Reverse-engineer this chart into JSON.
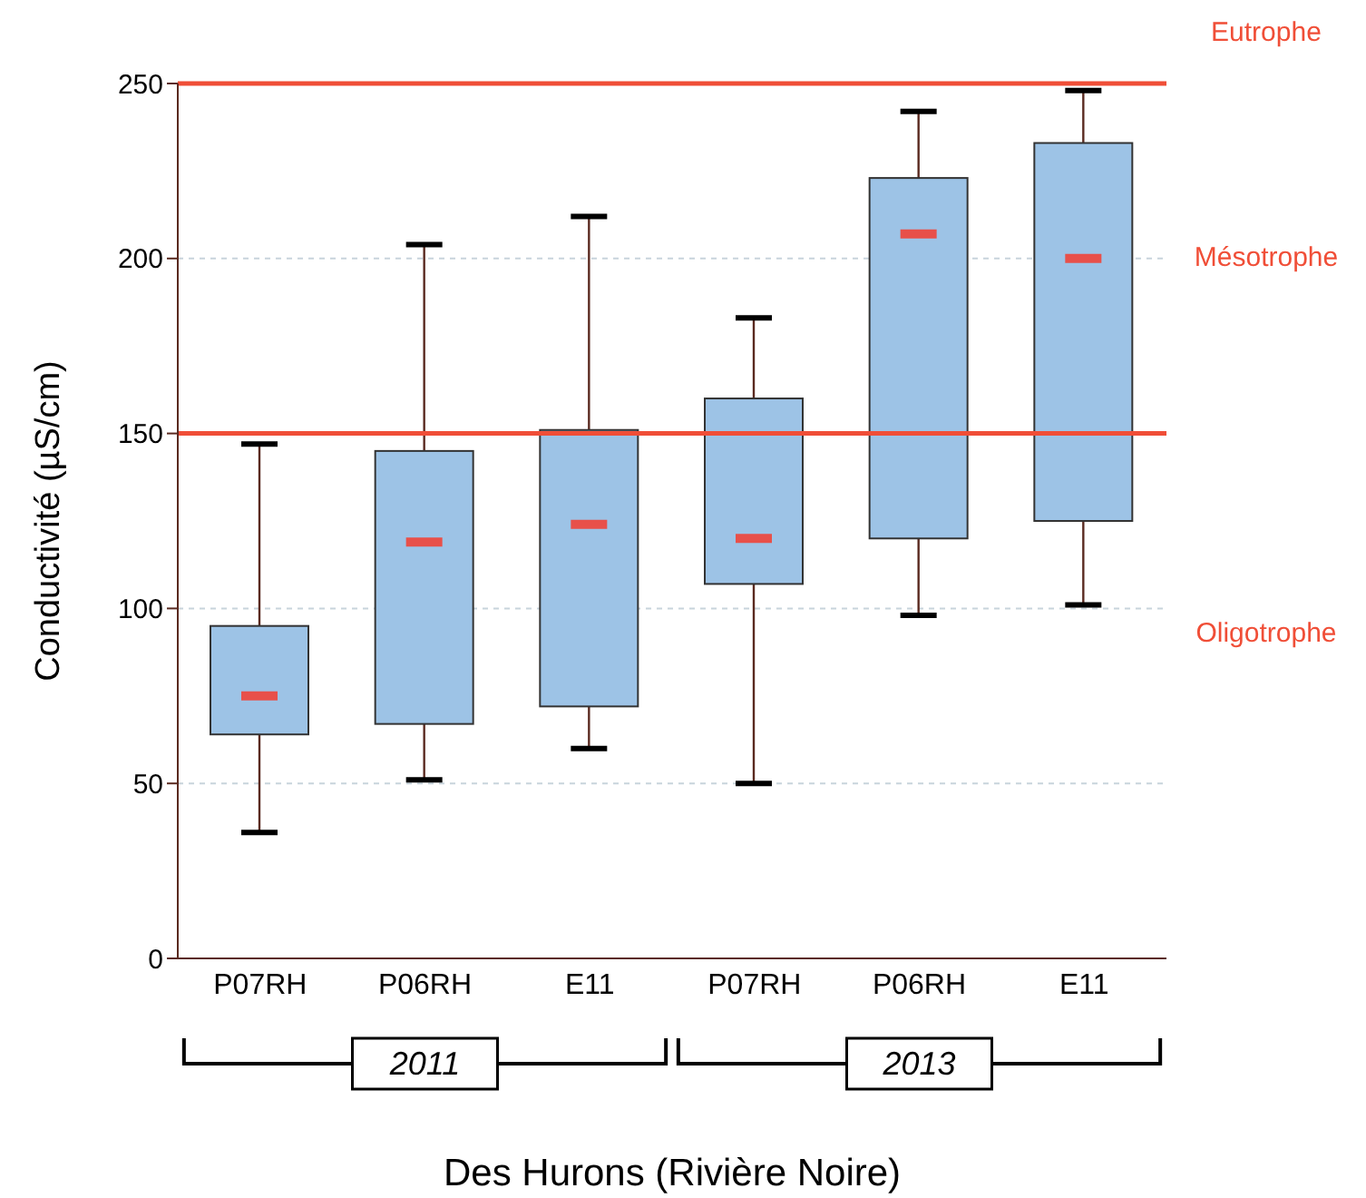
{
  "chart_data": {
    "type": "box",
    "xlabel": "Des Hurons (Rivière Noire)",
    "ylabel": "Conductivité  (µS/cm)",
    "categories": [
      "P07RH",
      "P06RH",
      "E11",
      "P07RH",
      "P06RH",
      "E11"
    ],
    "series": [
      {
        "color": "#9dc3e6",
        "boxes": [
          {
            "low": 36,
            "q1": 64,
            "median": 75,
            "q3": 95,
            "high": 147
          },
          {
            "low": 51,
            "q1": 67,
            "median": 119,
            "q3": 145,
            "high": 204
          },
          {
            "low": 60,
            "q1": 72,
            "median": 124,
            "q3": 151,
            "high": 212
          },
          {
            "low": 50,
            "q1": 107,
            "median": 120,
            "q3": 160,
            "high": 183
          },
          {
            "low": 98,
            "q1": 120,
            "median": 207,
            "q3": 223,
            "high": 242
          },
          {
            "low": 101,
            "q1": 125,
            "median": 200,
            "q3": 233,
            "high": 248
          }
        ]
      }
    ],
    "ylim": [
      0,
      250
    ],
    "yticks": [
      0,
      50,
      100,
      150,
      200,
      250
    ],
    "grid": "y",
    "legend": false,
    "ref_lines": [
      {
        "axis": "y",
        "value": 250,
        "color": "#f04e37"
      },
      {
        "axis": "y",
        "value": 150,
        "color": "#f04e37"
      }
    ],
    "annotations": [
      "Eutrophe",
      "Mésotrophe",
      "Oligotrophe",
      "2011",
      "2013"
    ]
  }
}
